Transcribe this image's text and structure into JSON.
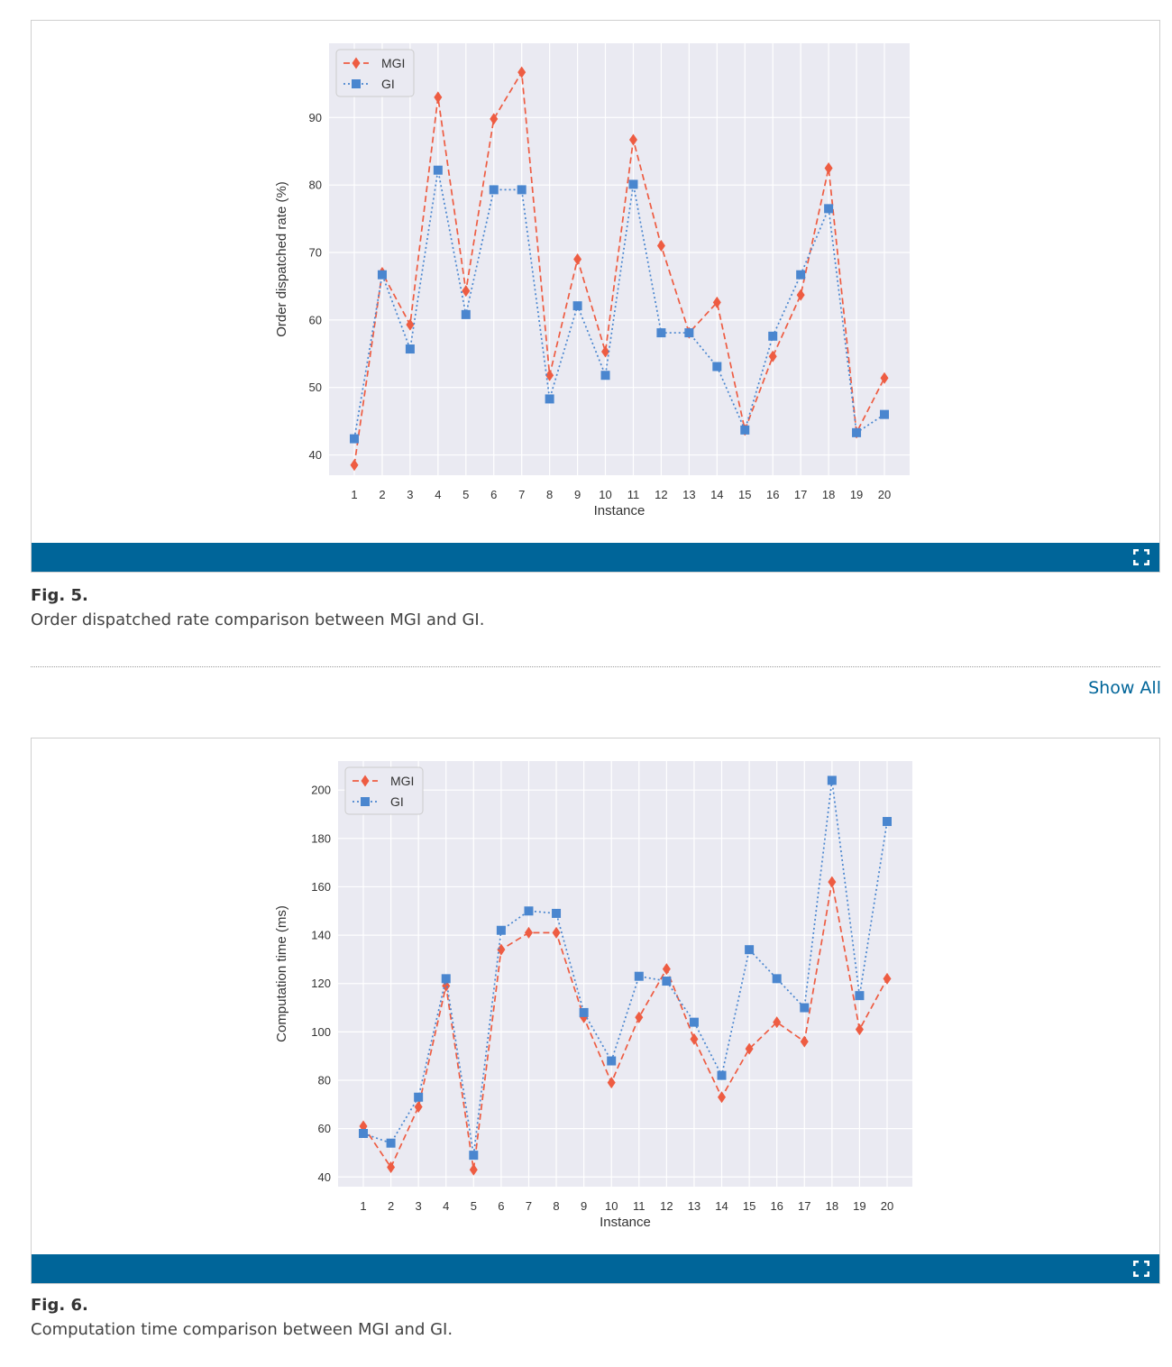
{
  "figures": [
    {
      "label": "Fig. 5.",
      "caption": "Order dispatched rate comparison between MGI and GI."
    },
    {
      "label": "Fig. 6.",
      "caption": "Computation time comparison between MGI and GI."
    }
  ],
  "show_all": "Show All",
  "colors": {
    "bar": "#006599",
    "mgi": "#ee5c42",
    "gi": "#4a86cf",
    "plot_bg": "#eaeaf2"
  },
  "icons": [
    "expand-icon"
  ],
  "chart_data": [
    {
      "type": "line",
      "xlabel": "Instance",
      "ylabel": "Order dispatched rate (%)",
      "ylim": [
        37,
        101
      ],
      "yticks": [
        40,
        50,
        60,
        70,
        80,
        90
      ],
      "categories": [
        "1",
        "2",
        "3",
        "4",
        "5",
        "6",
        "7",
        "8",
        "9",
        "10",
        "11",
        "12",
        "13",
        "14",
        "15",
        "16",
        "17",
        "18",
        "19",
        "20"
      ],
      "grid": true,
      "legend_position": "top-left",
      "series": [
        {
          "name": "MGI",
          "marker": "diamond",
          "linestyle": "dashed",
          "color": "#ee5c42",
          "values": [
            38.5,
            67,
            59.3,
            93,
            64.3,
            89.8,
            96.7,
            51.8,
            69,
            55.3,
            86.7,
            71,
            58.1,
            62.6,
            43.7,
            54.6,
            63.7,
            82.5,
            43.3,
            51.4
          ]
        },
        {
          "name": "GI",
          "marker": "square",
          "linestyle": "dotted",
          "color": "#4a86cf",
          "values": [
            42.4,
            66.7,
            55.7,
            82.2,
            60.8,
            79.3,
            79.3,
            48.3,
            62.1,
            51.8,
            80.1,
            58.1,
            58.1,
            53.1,
            43.7,
            57.6,
            66.7,
            76.5,
            43.3,
            46.0
          ]
        }
      ]
    },
    {
      "type": "line",
      "xlabel": "Instance",
      "ylabel": "Computation time (ms)",
      "ylim": [
        36,
        212
      ],
      "yticks": [
        40,
        60,
        80,
        100,
        120,
        140,
        160,
        180,
        200
      ],
      "categories": [
        "1",
        "2",
        "3",
        "4",
        "5",
        "6",
        "7",
        "8",
        "9",
        "10",
        "11",
        "12",
        "13",
        "14",
        "15",
        "16",
        "17",
        "18",
        "19",
        "20"
      ],
      "grid": true,
      "legend_position": "top-left",
      "series": [
        {
          "name": "MGI",
          "marker": "diamond",
          "linestyle": "dashed",
          "color": "#ee5c42",
          "values": [
            61,
            44,
            69,
            119,
            43,
            134,
            141,
            141,
            106,
            79,
            106,
            126,
            97,
            73,
            93,
            104,
            96,
            162,
            101,
            122
          ]
        },
        {
          "name": "GI",
          "marker": "square",
          "linestyle": "dotted",
          "color": "#4a86cf",
          "values": [
            58,
            54,
            73,
            122,
            49,
            142,
            150,
            149,
            108,
            88,
            123,
            121,
            104,
            82,
            134,
            122,
            110,
            204,
            115,
            187
          ]
        }
      ]
    }
  ]
}
